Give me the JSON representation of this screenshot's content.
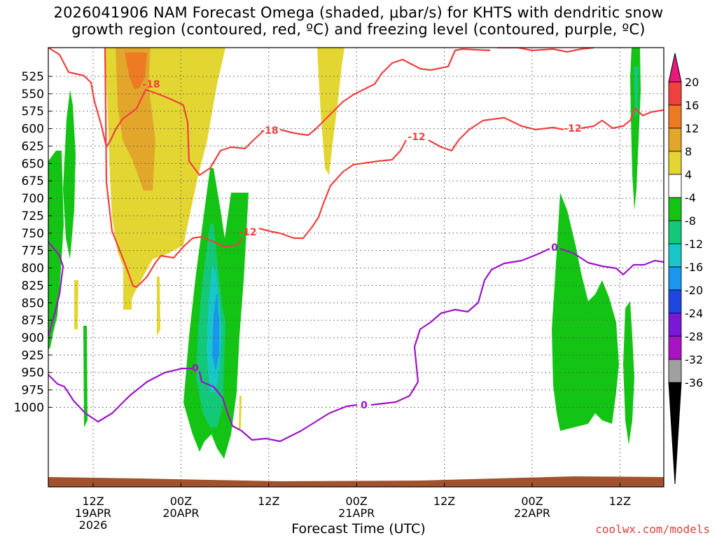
{
  "title_line1": "2026041906 NAM Forecast Omega (shaded, μbar/s) for KHTS with dendritic snow",
  "title_line2": "growth region (contoured, red, ºC) and freezing level (contoured, purple, ºC)",
  "xaxis_label": "Forecast Time (UTC)",
  "credit": "coolwx.com/models",
  "chart_data": {
    "type": "heatmap",
    "title": "2026041906 NAM Forecast Omega (shaded, μbar/s) for KHTS with dendritic snow growth region (contoured, red, ºC) and freezing level (contoured, purple, ºC)",
    "xlabel": "Forecast Time (UTC)",
    "ylabel": "",
    "x_range_hours_from_init": [
      0,
      84
    ],
    "y_inverted": true,
    "y_ticks": [
      "525",
      "550",
      "575",
      "600",
      "625",
      "650",
      "675",
      "700",
      "725",
      "750",
      "775",
      "800",
      "825",
      "850",
      "875",
      "900",
      "925",
      "950",
      "975",
      "1000"
    ],
    "x_ticks": [
      {
        "hour": 6,
        "label": "12Z",
        "sub1": "19APR",
        "sub2": "2026"
      },
      {
        "hour": 18,
        "label": "00Z",
        "sub1": "20APR",
        "sub2": ""
      },
      {
        "hour": 30,
        "label": "12Z",
        "sub1": "",
        "sub2": ""
      },
      {
        "hour": 42,
        "label": "00Z",
        "sub1": "21APR",
        "sub2": ""
      },
      {
        "hour": 54,
        "label": "12Z",
        "sub1": "",
        "sub2": ""
      },
      {
        "hour": 66,
        "label": "00Z",
        "sub1": "22APR",
        "sub2": ""
      },
      {
        "hour": 78,
        "label": "12Z",
        "sub1": "",
        "sub2": ""
      }
    ],
    "grid": true,
    "colorbar": {
      "labels": [
        "20",
        "16",
        "12",
        "8",
        "4",
        "-4",
        "-8",
        "-12",
        "-16",
        "-20",
        "-24",
        "-28",
        "-32",
        "-36"
      ],
      "colors": [
        "#e8197c",
        "#f04040",
        "#ee7a24",
        "#e2a62a",
        "#e4d632",
        "#ffffff",
        "#14c414",
        "#14c87a",
        "#18c8c8",
        "#1a96ee",
        "#1e46e0",
        "#7a18d8",
        "#a814c4",
        "#a0a0a0",
        "#000000"
      ]
    },
    "contours": [
      {
        "name": "-18",
        "color": "#f04040",
        "labels": [
          "-18",
          "-18"
        ]
      },
      {
        "name": "-12",
        "color": "#f04040",
        "labels": [
          "-12",
          "-12",
          "-12"
        ]
      },
      {
        "name": "0",
        "color": "#9c14c8",
        "labels": [
          "0",
          "0",
          "0"
        ]
      }
    ],
    "ground_color": "#a0522d"
  }
}
